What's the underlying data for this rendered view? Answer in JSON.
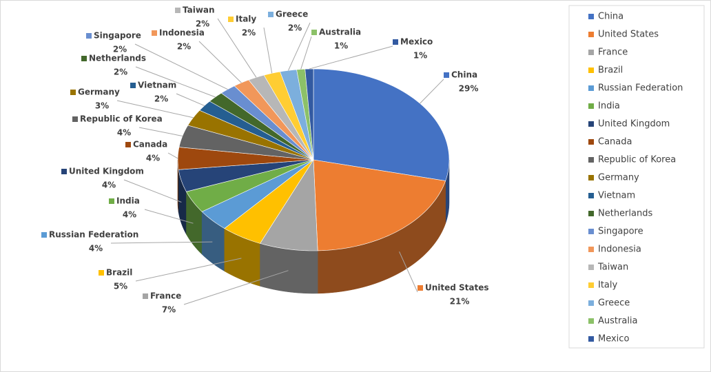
{
  "chart_data": {
    "type": "pie3d",
    "categories": [
      "China",
      "United States",
      "France",
      "Brazil",
      "Russian Federation",
      "India",
      "United Kingdom",
      "Canada",
      "Republic of Korea",
      "Germany",
      "Vietnam",
      "Netherlands",
      "Singapore",
      "Indonesia",
      "Taiwan",
      "Italy",
      "Greece",
      "Australia",
      "Mexico"
    ],
    "values": [
      29,
      21,
      7,
      5,
      4,
      4,
      4,
      4,
      4,
      3,
      2,
      2,
      2,
      2,
      2,
      2,
      2,
      1,
      1
    ],
    "value_labels": [
      "29%",
      "21%",
      "7%",
      "5%",
      "4%",
      "4%",
      "4%",
      "4%",
      "4%",
      "3%",
      "2%",
      "2%",
      "2%",
      "2%",
      "2%",
      "2%",
      "2%",
      "1%",
      "1%"
    ],
    "colors": [
      "#4472c4",
      "#ed7d31",
      "#a5a5a5",
      "#ffc000",
      "#5b9bd5",
      "#70ad47",
      "#264478",
      "#9e480e",
      "#636363",
      "#997300",
      "#255e91",
      "#43682b",
      "#698ed0",
      "#f1975a",
      "#b7b7b7",
      "#ffcd33",
      "#7cafdd",
      "#8cc168",
      "#335aa1"
    ],
    "legend": "right"
  }
}
